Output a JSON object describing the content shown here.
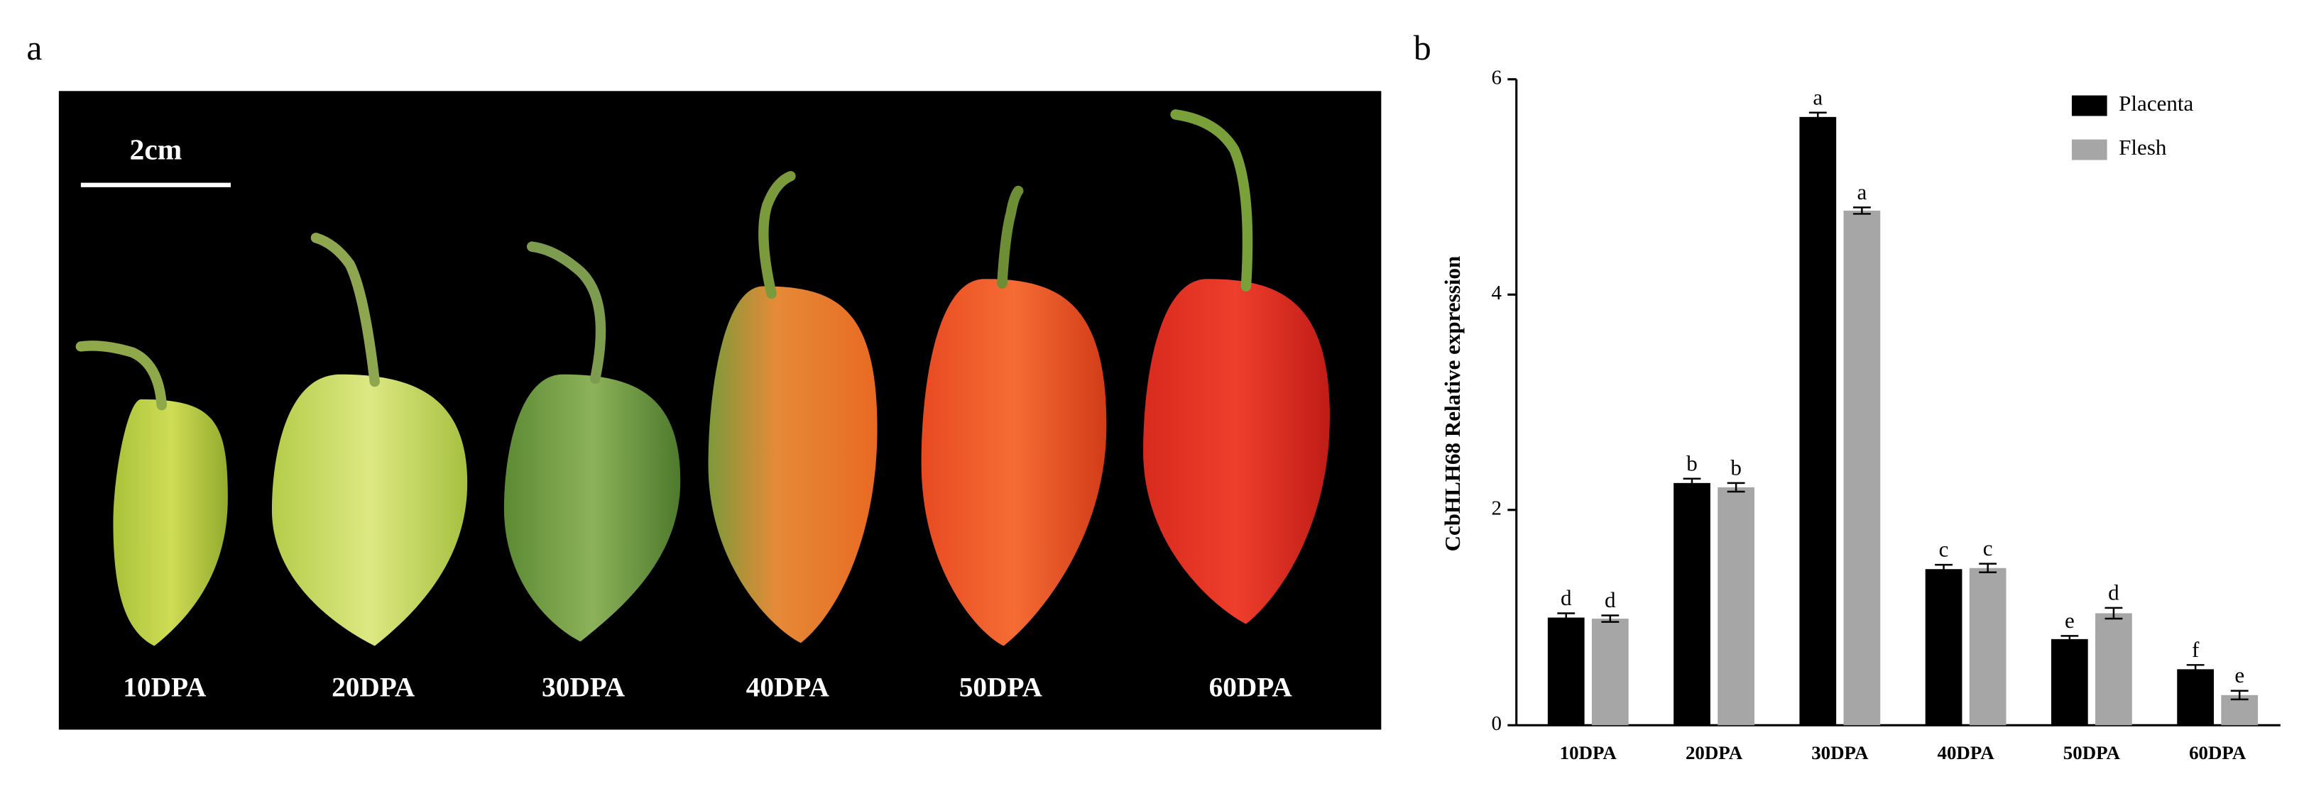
{
  "panel_a": {
    "label": "a",
    "scale_bar": "2cm",
    "stages": [
      "10DPA",
      "20DPA",
      "30DPA",
      "40DPA",
      "50DPA",
      "60DPA"
    ]
  },
  "chart_data": {
    "type": "bar",
    "label": "b",
    "ylabel": "CcbHLH68 Relative expression",
    "categories": [
      "10DPA",
      "20DPA",
      "30DPA",
      "40DPA",
      "50DPA",
      "60DPA"
    ],
    "series": [
      {
        "name": "Placenta",
        "color": "#000000",
        "values": [
          1.0,
          2.25,
          5.65,
          1.45,
          0.8,
          0.52
        ],
        "errors": [
          0.04,
          0.04,
          0.04,
          0.04,
          0.03,
          0.04
        ],
        "letters": [
          "d",
          "b",
          "a",
          "c",
          "e",
          "f"
        ]
      },
      {
        "name": "Flesh",
        "color": "#a6a6a6",
        "values": [
          0.99,
          2.21,
          4.78,
          1.46,
          1.04,
          0.28
        ],
        "errors": [
          0.03,
          0.04,
          0.03,
          0.04,
          0.05,
          0.04
        ],
        "letters": [
          "d",
          "b",
          "a",
          "c",
          "d",
          "e"
        ]
      }
    ],
    "ylim": [
      0,
      6
    ],
    "yticks": [
      0,
      2,
      4,
      6
    ],
    "grid": false,
    "legend": "top-right"
  }
}
